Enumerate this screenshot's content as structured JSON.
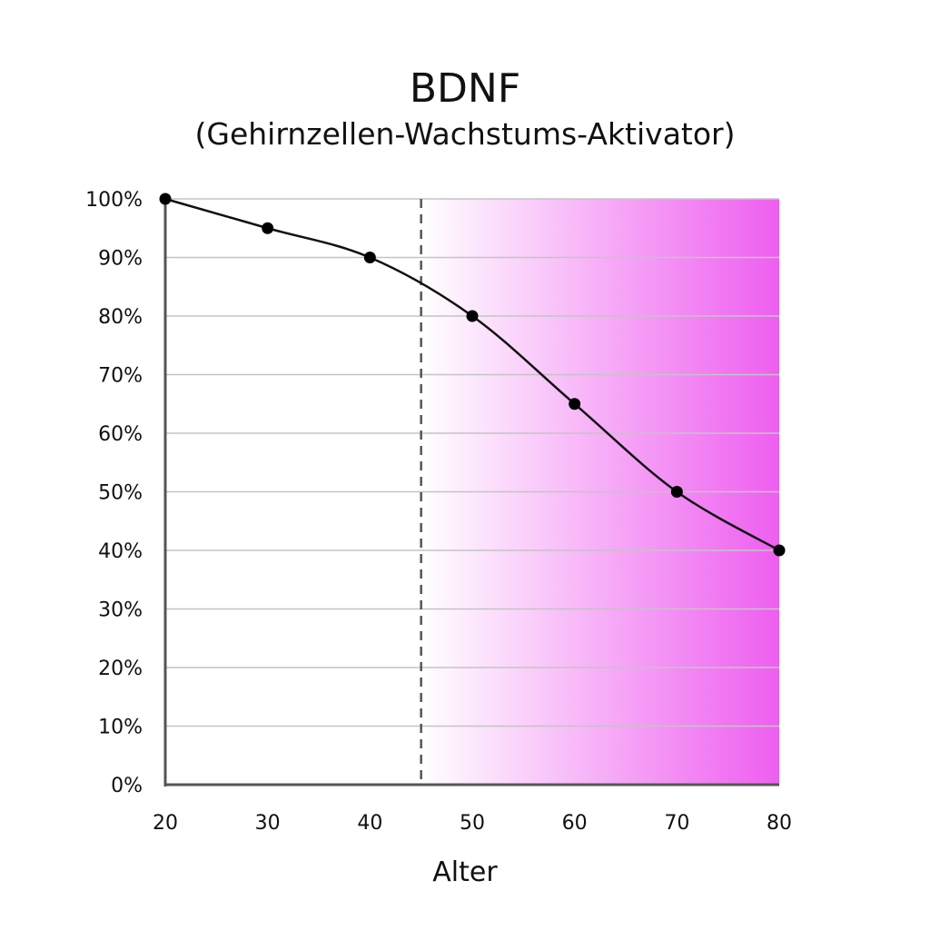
{
  "chart_data": {
    "type": "line",
    "title": "BDNF",
    "subtitle": "(Gehirnzellen-Wachstums-Aktivator)",
    "xlabel": "Alter",
    "ylabel": "",
    "x": [
      20,
      30,
      40,
      50,
      60,
      70,
      80
    ],
    "values": [
      100,
      95,
      90,
      80,
      65,
      50,
      40
    ],
    "xlim": [
      20,
      80
    ],
    "ylim": [
      0,
      100
    ],
    "xticks": [
      "20",
      "30",
      "40",
      "50",
      "60",
      "70",
      "80"
    ],
    "yticks": [
      "0%",
      "10%",
      "20%",
      "30%",
      "40%",
      "50%",
      "60%",
      "70%",
      "80%",
      "90%",
      "100%"
    ],
    "grid": "horizontal",
    "marker_line_x": 45,
    "shaded_region": {
      "from": 45,
      "to": 80,
      "color_start": "#ffffff",
      "color_end": "#ee5ef0"
    },
    "line_color": "#111111"
  }
}
